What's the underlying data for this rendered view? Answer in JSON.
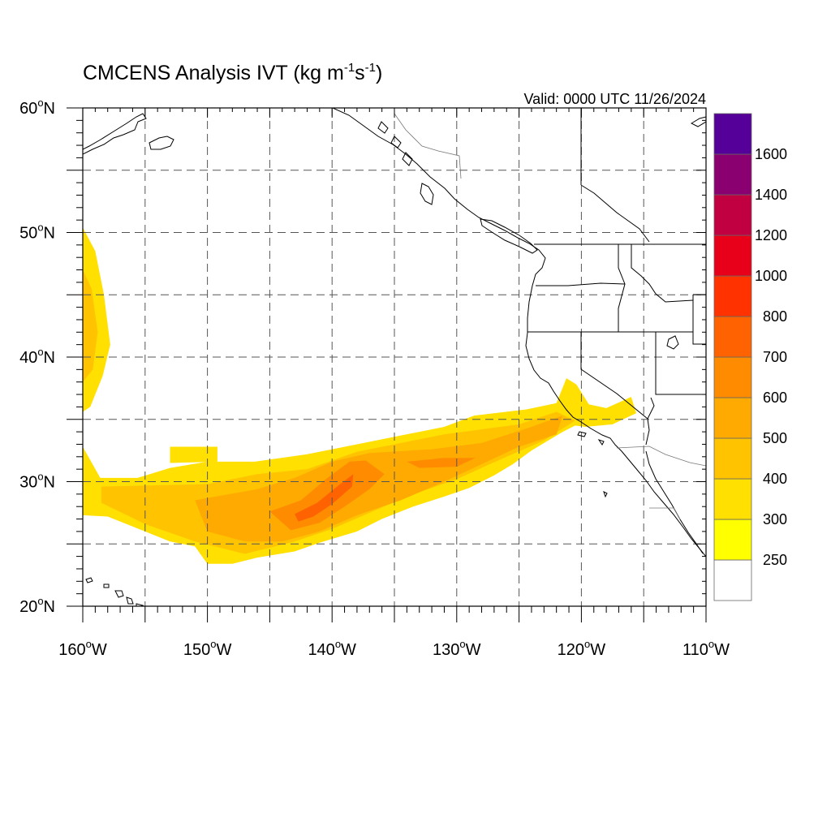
{
  "title": {
    "prefix": "CMCENS Analysis IVT (kg m",
    "sup1": "-1",
    "mid": "s",
    "sup2": "-1",
    "suffix": ")"
  },
  "valid_label": "Valid: 0000 UTC 11/26/2024",
  "map": {
    "lon_range": [
      -160,
      -110
    ],
    "lat_range": [
      20,
      60
    ],
    "grid_lon": [
      -155,
      -150,
      -145,
      -140,
      -135,
      -130,
      -125,
      -120,
      -115
    ],
    "grid_lat": [
      25,
      30,
      35,
      40,
      45,
      50,
      55
    ],
    "x_ticks": [
      {
        "lon": -160,
        "label": "160°W"
      },
      {
        "lon": -150,
        "label": "150°W"
      },
      {
        "lon": -140,
        "label": "140°W"
      },
      {
        "lon": -130,
        "label": "130°W"
      },
      {
        "lon": -120,
        "label": "120°W"
      },
      {
        "lon": -110,
        "label": "110°W"
      }
    ],
    "y_ticks": [
      {
        "lat": 20,
        "label": "20°N"
      },
      {
        "lat": 30,
        "label": "30°N"
      },
      {
        "lat": 40,
        "label": "40°N"
      },
      {
        "lat": 50,
        "label": "50°N"
      },
      {
        "lat": 60,
        "label": "60°N"
      }
    ]
  },
  "colorbar": {
    "levels": [
      250,
      300,
      400,
      500,
      600,
      700,
      800,
      1000,
      1200,
      1400,
      1600
    ],
    "labels": [
      "250",
      "300",
      "400",
      "500",
      "600",
      "700",
      "800",
      "1000",
      "1200",
      "1400",
      "1600"
    ],
    "colors": [
      "#ffffff",
      "#ffff00",
      "#ffe000",
      "#ffc300",
      "#ffaa00",
      "#ff8c00",
      "#ff6200",
      "#ff3200",
      "#e8001a",
      "#c00040",
      "#8a0070",
      "#550099"
    ]
  },
  "ivt_field": {
    "units": "kg m-1 s-1",
    "regions": [
      {
        "name": "north-band",
        "level": 300,
        "points": [
          [
            -160,
            50.4
          ],
          [
            -159,
            48.5
          ],
          [
            -158.3,
            45
          ],
          [
            -157.8,
            41
          ],
          [
            -158.4,
            38.5
          ],
          [
            -159.4,
            36
          ],
          [
            -160,
            35.6
          ]
        ]
      },
      {
        "name": "north-band-core",
        "level": 400,
        "points": [
          [
            -160,
            47
          ],
          [
            -159.3,
            45.5
          ],
          [
            -158.8,
            42
          ],
          [
            -159.2,
            39
          ],
          [
            -160,
            38
          ]
        ]
      },
      {
        "name": "main-band",
        "level": 300,
        "points": [
          [
            -160,
            32.8
          ],
          [
            -158.6,
            30.3
          ],
          [
            -155.6,
            30.3
          ],
          [
            -153,
            31.1
          ],
          [
            -150,
            31.6
          ],
          [
            -146.2,
            31.6
          ],
          [
            -142,
            32.2
          ],
          [
            -138,
            33
          ],
          [
            -131,
            34.4
          ],
          [
            -128.6,
            35.3
          ],
          [
            -124.4,
            35.8
          ],
          [
            -122,
            36.3
          ],
          [
            -121.2,
            38.3
          ],
          [
            -120.4,
            37.8
          ],
          [
            -119.4,
            36.2
          ],
          [
            -118,
            35.9
          ],
          [
            -116,
            36.8
          ],
          [
            -115.6,
            35.5
          ],
          [
            -117.5,
            34.6
          ],
          [
            -119.7,
            34.4
          ],
          [
            -120.5,
            34.5
          ],
          [
            -121.5,
            34
          ],
          [
            -124,
            32.5
          ],
          [
            -125.5,
            31.4
          ],
          [
            -127,
            30.5
          ],
          [
            -129,
            29.5
          ],
          [
            -131,
            28.8
          ],
          [
            -133.5,
            28
          ],
          [
            -136,
            27
          ],
          [
            -138,
            26
          ],
          [
            -141,
            25.1
          ],
          [
            -143,
            24.4
          ],
          [
            -146,
            23.9
          ],
          [
            -148,
            23.4
          ],
          [
            -150,
            23.4
          ],
          [
            -151,
            24.8
          ],
          [
            -153,
            25.2
          ],
          [
            -156,
            26.4
          ],
          [
            -158,
            27.2
          ],
          [
            -160,
            27.3
          ]
        ]
      },
      {
        "name": "north-patch",
        "level": 300,
        "points": [
          [
            -153,
            32.8
          ],
          [
            -149.2,
            32.8
          ],
          [
            -149.2,
            31.6
          ],
          [
            -153,
            31.5
          ]
        ]
      },
      {
        "name": "main-band-core",
        "level": 400,
        "points": [
          [
            -158.5,
            29.6
          ],
          [
            -150,
            29.8
          ],
          [
            -146,
            30.6
          ],
          [
            -142,
            31
          ],
          [
            -138,
            32.4
          ],
          [
            -131,
            33.8
          ],
          [
            -125,
            34.6
          ],
          [
            -122,
            35.6
          ],
          [
            -120.5,
            34.9
          ],
          [
            -123,
            33.3
          ],
          [
            -126,
            32
          ],
          [
            -130,
            30.2
          ],
          [
            -134,
            28.8
          ],
          [
            -137,
            27.5
          ],
          [
            -140,
            26.2
          ],
          [
            -143,
            25.2
          ],
          [
            -147,
            24.2
          ],
          [
            -151,
            25.2
          ],
          [
            -155,
            26.6
          ],
          [
            -158.5,
            28.3
          ]
        ]
      },
      {
        "name": "core-500",
        "level": 500,
        "points": [
          [
            -151,
            28.5
          ],
          [
            -146,
            29.4
          ],
          [
            -143,
            30.3
          ],
          [
            -140,
            31.6
          ],
          [
            -137,
            32.3
          ],
          [
            -132,
            32.6
          ],
          [
            -128,
            33.1
          ],
          [
            -124,
            34.4
          ],
          [
            -121.5,
            35.3
          ],
          [
            -122,
            33.8
          ],
          [
            -125,
            32.8
          ],
          [
            -128,
            31.4
          ],
          [
            -131,
            30
          ],
          [
            -134.5,
            28.5
          ],
          [
            -138,
            27.3
          ],
          [
            -141,
            26
          ],
          [
            -144,
            25.2
          ],
          [
            -147,
            25.2
          ],
          [
            -150,
            26
          ]
        ]
      },
      {
        "name": "core-600",
        "level": 600,
        "points": [
          [
            -145,
            27.6
          ],
          [
            -142.5,
            28.5
          ],
          [
            -140.5,
            30.2
          ],
          [
            -138.6,
            31.6
          ],
          [
            -137.3,
            31.7
          ],
          [
            -135.8,
            30.6
          ],
          [
            -137,
            29.4
          ],
          [
            -139,
            28
          ],
          [
            -141,
            26.7
          ],
          [
            -143.3,
            26.1
          ]
        ]
      },
      {
        "name": "core-600-east",
        "level": 600,
        "points": [
          [
            -134,
            31.6
          ],
          [
            -131,
            31.9
          ],
          [
            -128.5,
            31.9
          ],
          [
            -130,
            31.2
          ],
          [
            -133,
            31.1
          ]
        ]
      },
      {
        "name": "core-700",
        "level": 700,
        "points": [
          [
            -143,
            27.4
          ],
          [
            -141.2,
            28.3
          ],
          [
            -139.6,
            29.6
          ],
          [
            -138.3,
            30.6
          ],
          [
            -138.4,
            29.6
          ],
          [
            -140,
            28.2
          ],
          [
            -141.5,
            27.2
          ],
          [
            -142.7,
            26.8
          ]
        ]
      }
    ]
  }
}
